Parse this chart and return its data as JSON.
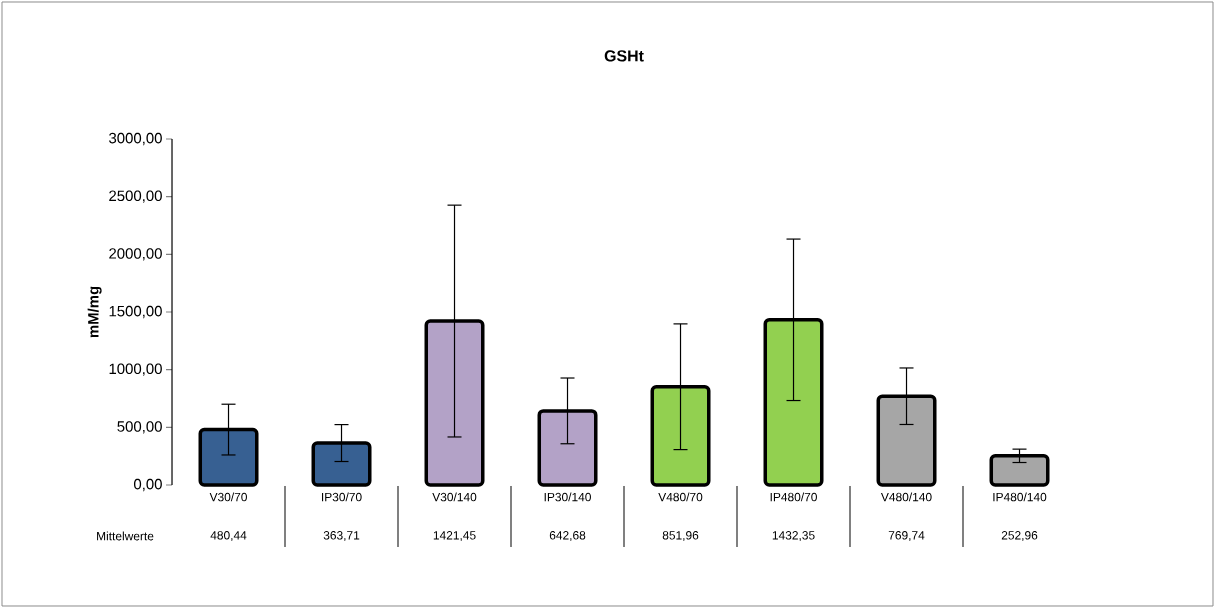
{
  "chart_data": {
    "type": "bar",
    "title": "GSHt",
    "ylabel": "mM/mg",
    "categories": [
      "V30/70",
      "IP30/70",
      "V30/140",
      "IP30/140",
      "V480/70",
      "IP480/70",
      "V480/140",
      "IP480/140"
    ],
    "values": [
      480.44,
      363.71,
      1421.45,
      642.68,
      851.96,
      1432.35,
      769.74,
      252.96
    ],
    "colors": [
      "#376092",
      "#376092",
      "#b3a2c7",
      "#b3a2c7",
      "#92d050",
      "#92d050",
      "#a6a6a6",
      "#a6a6a6"
    ],
    "errors": [
      220,
      160,
      1005,
      285,
      545,
      700,
      245,
      58
    ],
    "ylim": [
      0,
      3000
    ],
    "yticks": [
      {
        "value": 0,
        "label": "0,00"
      },
      {
        "value": 500,
        "label": "500,00"
      },
      {
        "value": 1000,
        "label": "1000,00"
      },
      {
        "value": 1500,
        "label": "1500,00"
      },
      {
        "value": 2000,
        "label": "2000,00"
      },
      {
        "value": 2500,
        "label": "2500,00"
      },
      {
        "value": 3000,
        "label": "3000,00"
      }
    ],
    "value_labels": [
      "480,44",
      "363,71",
      "1421,45",
      "642,68",
      "851,96",
      "1432,35",
      "769,74",
      "252,96"
    ],
    "grid": false,
    "annotations": [
      "Mittelwerte"
    ]
  }
}
